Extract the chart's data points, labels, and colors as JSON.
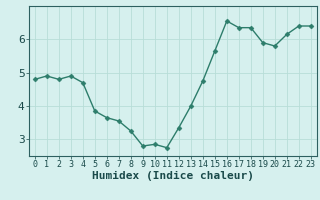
{
  "x": [
    0,
    1,
    2,
    3,
    4,
    5,
    6,
    7,
    8,
    9,
    10,
    11,
    12,
    13,
    14,
    15,
    16,
    17,
    18,
    19,
    20,
    21,
    22,
    23
  ],
  "y": [
    4.8,
    4.9,
    4.8,
    4.9,
    4.7,
    3.85,
    3.65,
    3.55,
    3.25,
    2.8,
    2.85,
    2.75,
    3.35,
    4.0,
    4.75,
    5.65,
    6.55,
    6.35,
    6.35,
    5.9,
    5.8,
    6.15,
    6.4,
    6.4
  ],
  "line_color": "#2d7d6b",
  "marker_color": "#2d7d6b",
  "bg_color": "#d6f0ee",
  "grid_color": "#b8ddd8",
  "axis_color": "#2d6060",
  "xlabel": "Humidex (Indice chaleur)",
  "yticks": [
    3,
    4,
    5,
    6
  ],
  "ylim": [
    2.5,
    7.0
  ],
  "xlim": [
    -0.5,
    23.5
  ],
  "font_color": "#1a4a4a",
  "font_size": 7,
  "xlabel_font_size": 8,
  "linewidth": 1.0,
  "markersize": 2.5
}
